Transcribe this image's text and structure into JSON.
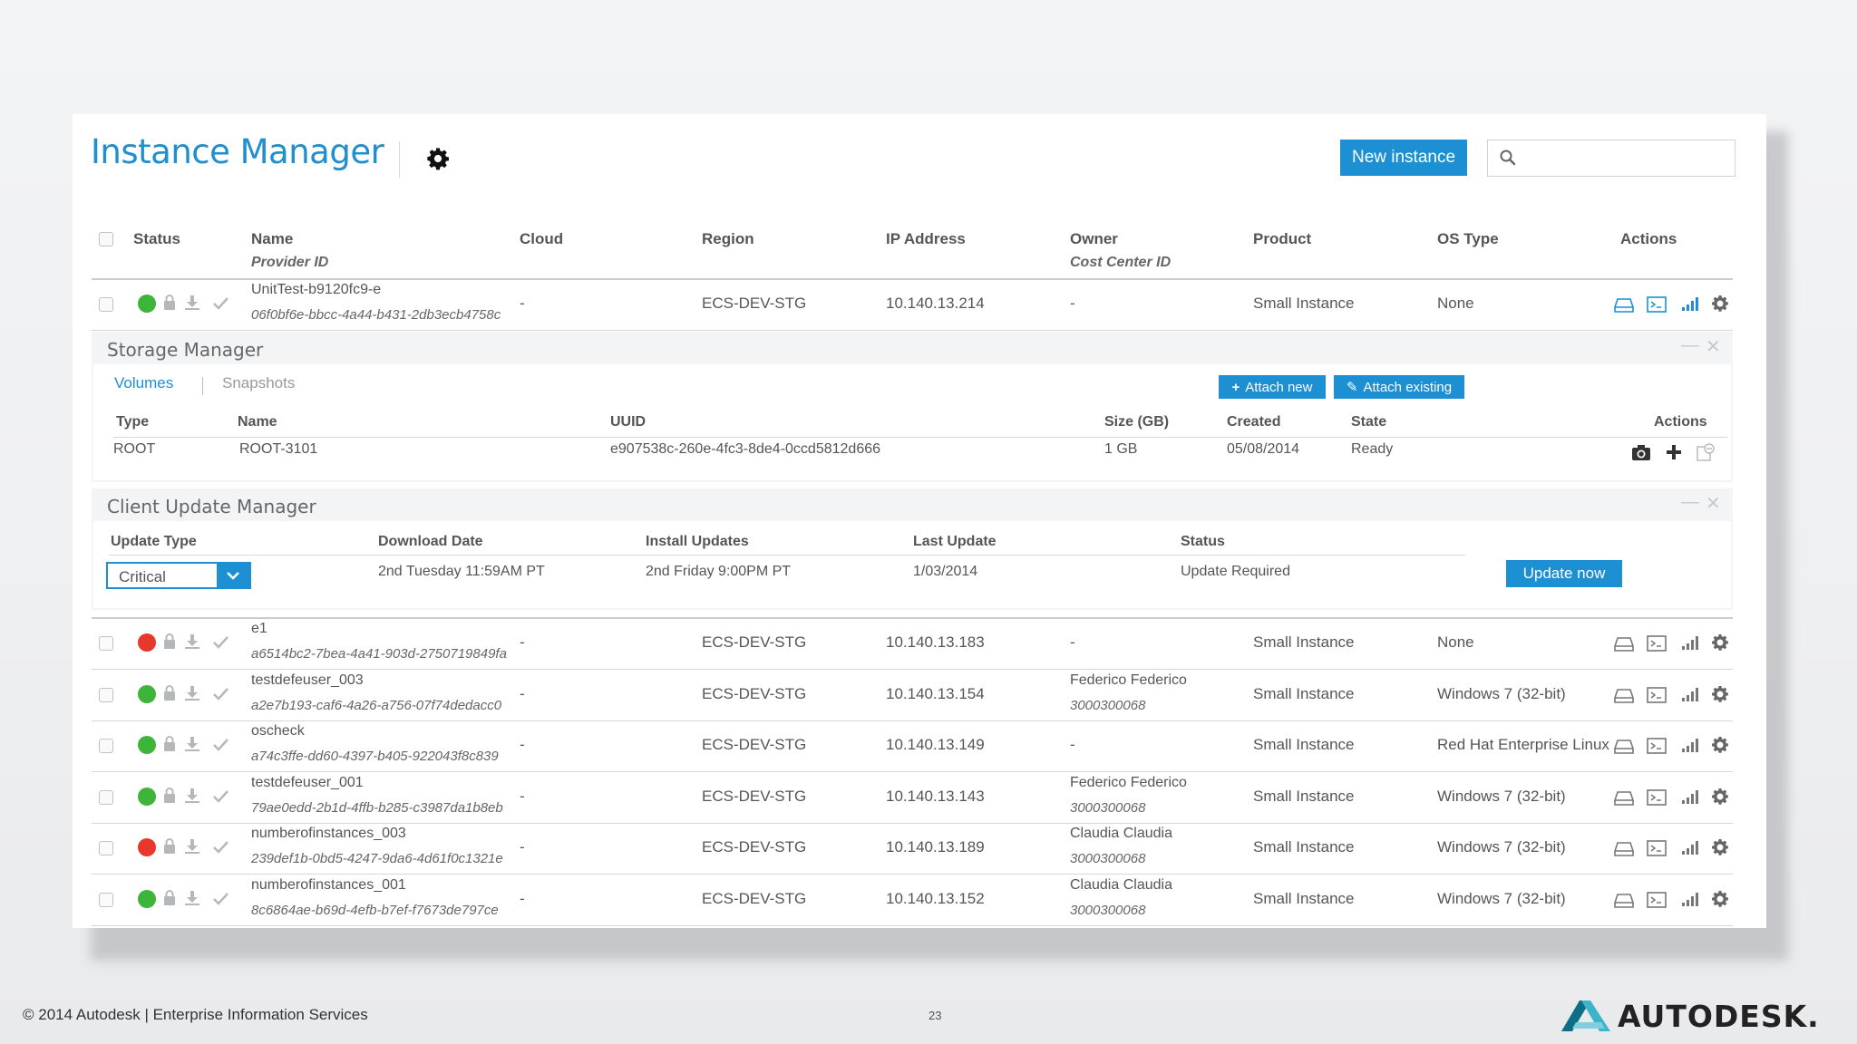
{
  "header": {
    "title": "Instance Manager",
    "new_instance_label": "New instance",
    "search_placeholder": ""
  },
  "columns": {
    "status": "Status",
    "name": "Name",
    "provider_id": "Provider ID",
    "cloud": "Cloud",
    "region": "Region",
    "ip": "IP Address",
    "owner": "Owner",
    "cost_center": "Cost Center ID",
    "product": "Product",
    "os": "OS Type",
    "actions": "Actions"
  },
  "instances": [
    {
      "status": "green",
      "name": "UnitTest-b9120fc9-e",
      "provider_id": "06f0bf6e-bbcc-4a44-b431-2db3ecb4758c",
      "cloud": "-",
      "region": "ECS-DEV-STG",
      "ip": "10.140.13.214",
      "owner": "-",
      "cost_center": "",
      "product": "Small Instance",
      "os": "None"
    },
    {
      "status": "red",
      "name": "e1",
      "provider_id": "a6514bc2-7bea-4a41-903d-2750719849fa",
      "cloud": "-",
      "region": "ECS-DEV-STG",
      "ip": "10.140.13.183",
      "owner": "-",
      "cost_center": "",
      "product": "Small Instance",
      "os": "None"
    },
    {
      "status": "green",
      "name": "testdefeuser_003",
      "provider_id": "a2e7b193-caf6-4a26-a756-07f74dedacc0",
      "cloud": "-",
      "region": "ECS-DEV-STG",
      "ip": "10.140.13.154",
      "owner": "Federico Federico",
      "cost_center": "3000300068",
      "product": "Small Instance",
      "os": "Windows 7 (32-bit)"
    },
    {
      "status": "green",
      "name": "oscheck",
      "provider_id": "a74c3ffe-dd60-4397-b405-922043f8c839",
      "cloud": "-",
      "region": "ECS-DEV-STG",
      "ip": "10.140.13.149",
      "owner": "-",
      "cost_center": "",
      "product": "Small Instance",
      "os": "Red Hat Enterprise Linux ..."
    },
    {
      "status": "green",
      "name": "testdefeuser_001",
      "provider_id": "79ae0edd-2b1d-4ffb-b285-c3987da1b8eb",
      "cloud": "-",
      "region": "ECS-DEV-STG",
      "ip": "10.140.13.143",
      "owner": "Federico Federico",
      "cost_center": "3000300068",
      "product": "Small Instance",
      "os": "Windows 7 (32-bit)"
    },
    {
      "status": "red",
      "name": "numberofinstances_003",
      "provider_id": "239def1b-0bd5-4247-9da6-4d61f0c1321e",
      "cloud": "-",
      "region": "ECS-DEV-STG",
      "ip": "10.140.13.189",
      "owner": "Claudia Claudia",
      "cost_center": "3000300068",
      "product": "Small Instance",
      "os": "Windows 7 (32-bit)"
    },
    {
      "status": "green",
      "name": "numberofinstances_001",
      "provider_id": "8c6864ae-b69d-4efb-b7ef-f7673de797ce",
      "cloud": "-",
      "region": "ECS-DEV-STG",
      "ip": "10.140.13.152",
      "owner": "Claudia Claudia",
      "cost_center": "3000300068",
      "product": "Small Instance",
      "os": "Windows 7 (32-bit)"
    }
  ],
  "storage": {
    "title": "Storage Manager",
    "tabs": [
      "Volumes",
      "Snapshots"
    ],
    "attach_new": "Attach new",
    "attach_existing": "Attach existing",
    "columns": {
      "type": "Type",
      "name": "Name",
      "uuid": "UUID",
      "size": "Size (GB)",
      "created": "Created",
      "state": "State",
      "actions": "Actions"
    },
    "row": {
      "type": "ROOT",
      "name": "ROOT-3101",
      "uuid": "e907538c-260e-4fc3-8de4-0ccd5812d666",
      "size": "1 GB",
      "created": "05/08/2014",
      "state": "Ready"
    }
  },
  "update": {
    "title": "Client Update Manager",
    "columns": {
      "type": "Update Type",
      "download": "Download Date",
      "install": "Install Updates",
      "last": "Last Update",
      "status": "Status"
    },
    "selected_type": "Critical",
    "download": "2nd Tuesday 11:59AM PT",
    "install": "2nd Friday 9:00PM PT",
    "last": "1/03/2014",
    "status": "Update Required",
    "update_now": "Update now"
  },
  "footer": {
    "copyright": "© 2014 Autodesk | Enterprise Information Services",
    "page": "23",
    "logo": "AUTODESK."
  },
  "colors": {
    "accent": "#1d8fd3",
    "status_green": "#3db43a",
    "status_red": "#e8382c"
  }
}
